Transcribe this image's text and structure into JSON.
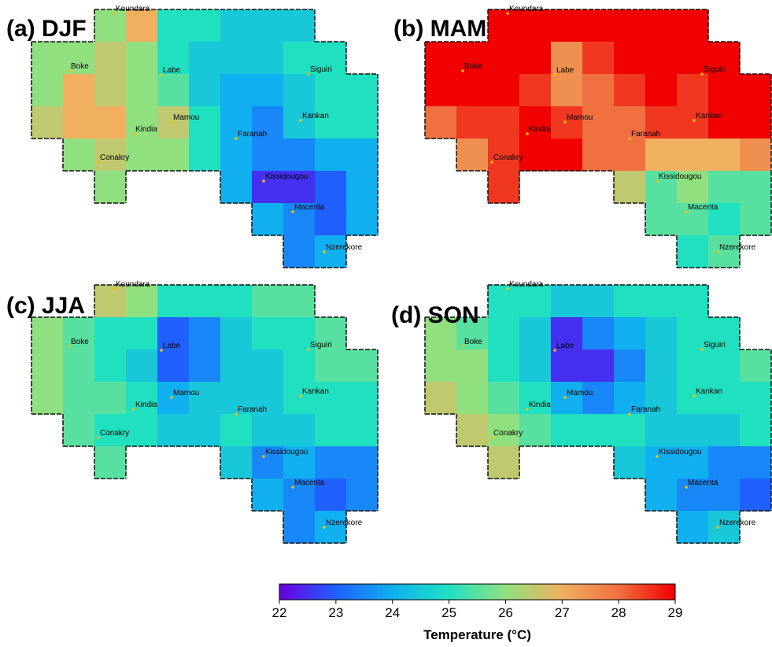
{
  "panels": [
    {
      "label": "(a) DJF",
      "grid": [
        [
          null,
          null,
          26,
          27,
          25,
          25,
          24.5,
          24.5,
          24.5,
          null,
          null
        ],
        [
          26,
          26,
          26.5,
          26,
          25,
          24.5,
          24.5,
          24.5,
          25,
          25,
          null
        ],
        [
          26,
          27,
          26.5,
          26,
          25.5,
          24.5,
          24,
          24,
          24.5,
          25,
          25
        ],
        [
          26.5,
          27,
          27,
          26,
          26.5,
          25,
          24,
          23.5,
          24.5,
          25,
          25
        ],
        [
          null,
          26,
          26.5,
          26,
          26,
          25,
          24,
          23.5,
          23.5,
          24,
          24
        ],
        [
          null,
          null,
          26,
          null,
          null,
          null,
          24,
          22.5,
          22.5,
          23,
          24
        ],
        [
          null,
          null,
          null,
          null,
          null,
          null,
          null,
          24,
          23.5,
          23,
          24
        ],
        [
          null,
          null,
          null,
          null,
          null,
          null,
          null,
          null,
          23.5,
          24,
          null
        ]
      ]
    },
    {
      "label": "(b) MAM",
      "grid": [
        [
          null,
          null,
          29,
          29,
          29,
          29,
          29,
          29,
          29,
          null,
          null
        ],
        [
          29,
          29,
          29,
          29,
          27.5,
          28.5,
          29,
          29,
          29,
          29,
          null
        ],
        [
          29,
          29,
          29,
          28.5,
          27.5,
          28,
          28.5,
          29,
          28.5,
          29,
          29
        ],
        [
          28,
          28.5,
          28.5,
          29,
          28.5,
          28,
          28,
          28.5,
          28.5,
          29,
          29
        ],
        [
          null,
          27.5,
          28.5,
          29,
          29,
          28,
          28,
          27,
          27,
          27,
          27.5
        ],
        [
          null,
          null,
          28.5,
          null,
          null,
          null,
          26.5,
          25.5,
          26,
          25.5,
          25.5
        ],
        [
          null,
          null,
          null,
          null,
          null,
          null,
          null,
          25.5,
          25.5,
          25,
          25.5
        ],
        [
          null,
          null,
          null,
          null,
          null,
          null,
          null,
          null,
          25,
          25.5,
          null
        ]
      ]
    },
    {
      "label": "(c) JJA",
      "grid": [
        [
          null,
          null,
          26.5,
          26,
          25,
          25,
          25,
          25.5,
          25.5,
          null,
          null
        ],
        [
          26,
          25.5,
          25,
          25,
          23,
          23.5,
          24.5,
          25,
          25,
          25.5,
          null
        ],
        [
          26,
          25.5,
          25,
          24.5,
          23,
          23.5,
          24.5,
          24.5,
          25,
          25.5,
          25.5
        ],
        [
          26,
          25.5,
          25.5,
          25,
          24,
          24.5,
          24.5,
          24.5,
          25,
          25,
          25
        ],
        [
          null,
          25.5,
          25,
          25,
          24.5,
          24.5,
          25,
          24.5,
          24.5,
          25,
          25
        ],
        [
          null,
          null,
          25.5,
          null,
          null,
          null,
          24.5,
          23.5,
          24,
          23.5,
          23.5
        ],
        [
          null,
          null,
          null,
          null,
          null,
          null,
          null,
          24,
          23.5,
          23,
          23.5
        ],
        [
          null,
          null,
          null,
          null,
          null,
          null,
          null,
          null,
          23.5,
          24,
          null
        ]
      ]
    },
    {
      "label": "(d) SON",
      "grid": [
        [
          null,
          null,
          25,
          25,
          24.5,
          24.5,
          25,
          25,
          25,
          null,
          null
        ],
        [
          26,
          25.5,
          25,
          24.5,
          22.5,
          23.5,
          24,
          24.5,
          25,
          25,
          null
        ],
        [
          26,
          26,
          25,
          24.5,
          22.5,
          22.5,
          23.5,
          24.5,
          25,
          25,
          25.5
        ],
        [
          26.5,
          26,
          25.5,
          25,
          24,
          23.5,
          24,
          24.5,
          25,
          25,
          25
        ],
        [
          null,
          26.5,
          26,
          25.5,
          25,
          25,
          25,
          24.5,
          24.5,
          24.5,
          25
        ],
        [
          null,
          null,
          26.5,
          null,
          null,
          null,
          24.5,
          24,
          24,
          23.5,
          23.5
        ],
        [
          null,
          null,
          null,
          null,
          null,
          null,
          null,
          24,
          23.5,
          23.5,
          23
        ],
        [
          null,
          null,
          null,
          null,
          null,
          null,
          null,
          null,
          24,
          24.5,
          null
        ]
      ]
    }
  ],
  "cities": [
    "Koundara",
    "Labe",
    "Siguiri",
    "Boke",
    "Mamou",
    "Kankan",
    "Kindia",
    "Faranah",
    "Conakry",
    "Kissidougou",
    "Macenta",
    "Nzerekore"
  ],
  "colorbar": {
    "lim": [
      22,
      29
    ],
    "ticks": [
      22,
      23,
      24,
      25,
      26,
      27,
      28,
      29
    ],
    "label": "Temperature (°C)",
    "colormap": [
      "#6a00e0",
      "#2060ff",
      "#10b0f0",
      "#20e0c0",
      "#90e080",
      "#f0b060",
      "#f07040",
      "#f00000"
    ]
  }
}
